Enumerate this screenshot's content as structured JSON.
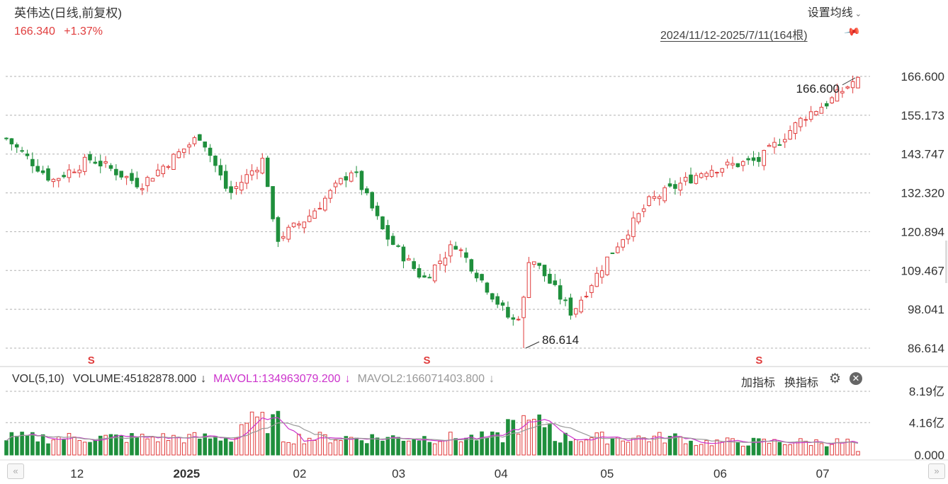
{
  "header": {
    "title": "英伟达(日线,前复权)",
    "price": "166.340",
    "change": "+1.37%",
    "settings_label": "设置均线",
    "date_range": "2024/11/12-2025/7/11(164根)"
  },
  "price_axis": {
    "ticks": [
      "166.600",
      "155.173",
      "143.747",
      "132.320",
      "120.894",
      "109.467",
      "98.041",
      "86.614"
    ]
  },
  "annotations": {
    "high_label": "166.600",
    "low_label": "86.614",
    "marker_glyph": "S"
  },
  "volume_panel": {
    "name": "VOL(5,10)",
    "volume_text": "VOLUME:45182878.000",
    "mavol1_text": "MAVOL1:134963079.200",
    "mavol2_text": "MAVOL2:166071403.800",
    "arrow_down": "↓",
    "add_indicator": "加指标",
    "swap_indicator": "换指标",
    "ticks": [
      "8.19亿",
      "4.16亿",
      "0.000"
    ]
  },
  "x_axis": {
    "labels": [
      "12",
      "2025",
      "02",
      "03",
      "04",
      "05",
      "06",
      "07"
    ]
  },
  "nav": {
    "prev": "«",
    "next": "»"
  },
  "colors": {
    "up": "#e03c3c",
    "down": "#1f8f3c",
    "mavol1": "#cc33cc",
    "mavol2": "#999999",
    "grid": "#b0b0b0"
  },
  "chart_data": {
    "type": "candlestick",
    "title": "英伟达(日线,前复权)",
    "period": "2024/11/12-2025/7/11",
    "bar_count": 164,
    "ylim": [
      86.614,
      166.6
    ],
    "high": 166.6,
    "low": 86.614,
    "last_close": 166.34,
    "change_pct": 1.37,
    "close_path": [
      {
        "date": "2024-11-12",
        "close": 148.3
      },
      {
        "date": "2024-11-25",
        "close": 136.0
      },
      {
        "date": "2024-12-06",
        "close": 142.4
      },
      {
        "date": "2024-12-20",
        "close": 134.7
      },
      {
        "date": "2025-01-06",
        "close": 149.4
      },
      {
        "date": "2025-01-14",
        "close": 131.8
      },
      {
        "date": "2025-01-24",
        "close": 142.6
      },
      {
        "date": "2025-01-27",
        "close": 118.4
      },
      {
        "date": "2025-02-05",
        "close": 124.8
      },
      {
        "date": "2025-02-18",
        "close": 139.4
      },
      {
        "date": "2025-02-27",
        "close": 120.2
      },
      {
        "date": "2025-03-10",
        "close": 106.9
      },
      {
        "date": "2025-03-19",
        "close": 117.5
      },
      {
        "date": "2025-04-04",
        "close": 94.3
      },
      {
        "date": "2025-04-07",
        "close": 97.6
      },
      {
        "date": "2025-04-09",
        "close": 114.3
      },
      {
        "date": "2025-04-21",
        "close": 96.9
      },
      {
        "date": "2025-05-02",
        "close": 114.5
      },
      {
        "date": "2025-05-13",
        "close": 129.9
      },
      {
        "date": "2025-05-29",
        "close": 139.2
      },
      {
        "date": "2025-06-13",
        "close": 141.9
      },
      {
        "date": "2025-06-26",
        "close": 155.0
      },
      {
        "date": "2025-07-03",
        "close": 159.3
      },
      {
        "date": "2025-07-11",
        "close": 166.34
      }
    ],
    "volume": {
      "latest": 45182878.0,
      "mavol1": 134963079.2,
      "mavol2": 166071403.8,
      "ticks": [
        "8.19亿",
        "4.16亿",
        "0.000"
      ]
    }
  }
}
